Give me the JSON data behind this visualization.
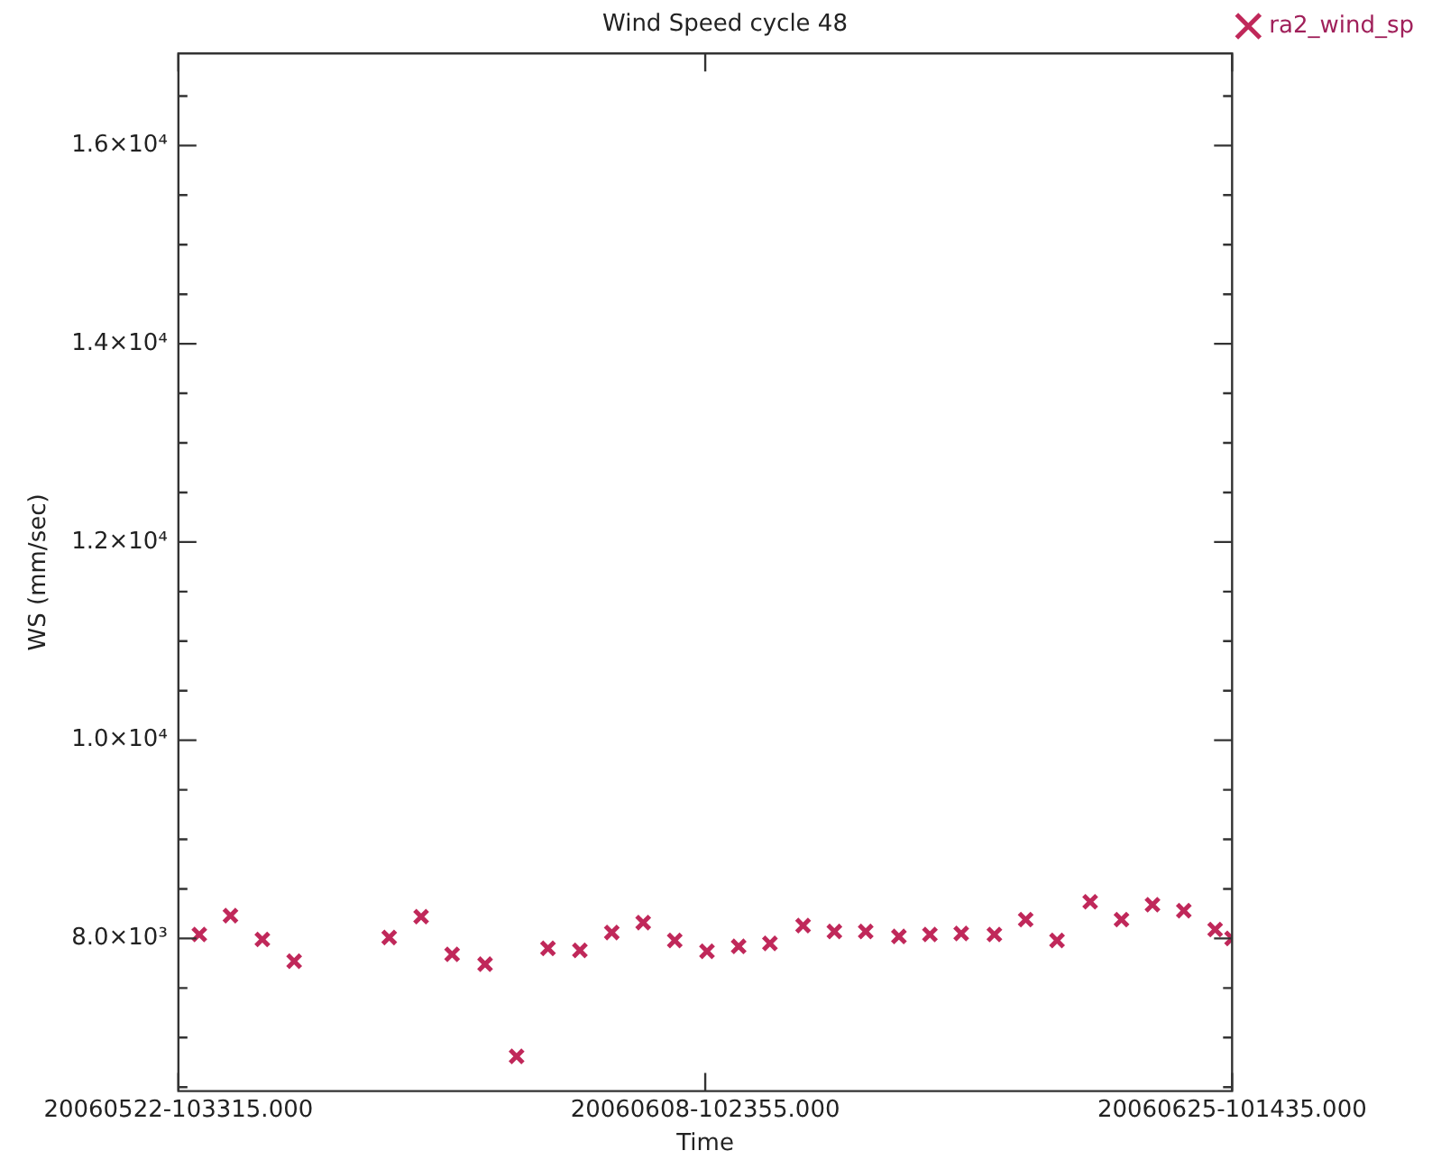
{
  "chart_data": {
    "type": "scatter",
    "title": "Wind Speed cycle 48",
    "xlabel": "Time",
    "ylabel": "WS (mm/sec)",
    "x": [
      "2006-05-23T02:45",
      "2006-05-24T02:51",
      "2006-05-25T03:33",
      "2006-05-26T04:09",
      "2006-05-29T05:45",
      "2006-05-30T06:27",
      "2006-05-31T06:27",
      "2006-06-01T07:57",
      "2006-06-02T08:21",
      "2006-06-03T08:39",
      "2006-06-04T09:21",
      "2006-06-05T10:03",
      "2006-06-06T10:21",
      "2006-06-07T10:47",
      "2006-06-08T11:45",
      "2006-06-09T12:15",
      "2006-06-10T12:28",
      "2006-06-11T14:09",
      "2006-06-12T14:22",
      "2006-06-13T14:37",
      "2006-06-14T16:19",
      "2006-06-15T16:19",
      "2006-06-16T16:33",
      "2006-06-17T18:14",
      "2006-06-18T18:28",
      "2006-06-19T18:43",
      "2006-06-20T20:23",
      "2006-06-21T20:37",
      "2006-06-22T20:37",
      "2006-06-23T20:52",
      "2006-06-24T21:07",
      "2006-06-25T10:14"
    ],
    "series": [
      {
        "name": "ra2_wind_sp",
        "color": "#c0285a",
        "values": [
          8040,
          8230,
          7990,
          7770,
          8010,
          8220,
          7840,
          7740,
          6810,
          7900,
          7880,
          8060,
          8160,
          7980,
          7870,
          7920,
          7950,
          8130,
          8070,
          8070,
          8020,
          8040,
          8050,
          8040,
          8190,
          7980,
          8370,
          8190,
          8340,
          8280,
          8090,
          8000
        ]
      }
    ],
    "xlim": [
      "2006-05-22T10:33:15",
      "2006-06-25T10:14:35"
    ],
    "xticks": [
      {
        "value": "2006-05-22T10:33:15",
        "label": "20060522-103315.000"
      },
      {
        "value": "2006-06-08T10:23:55",
        "label": "20060608-102355.000"
      },
      {
        "value": "2006-06-25T10:14:35",
        "label": "20060625-101435.000"
      }
    ],
    "ylim": [
      6460,
      16930
    ],
    "yticks": [
      {
        "value": 6500,
        "label": null
      },
      {
        "value": 7000,
        "label": null
      },
      {
        "value": 7500,
        "label": null
      },
      {
        "value": 8000,
        "label": "8.0×10³"
      },
      {
        "value": 8500,
        "label": null
      },
      {
        "value": 9000,
        "label": null
      },
      {
        "value": 9500,
        "label": null
      },
      {
        "value": 10000,
        "label": "1.0×10⁴"
      },
      {
        "value": 10500,
        "label": null
      },
      {
        "value": 11000,
        "label": null
      },
      {
        "value": 11500,
        "label": null
      },
      {
        "value": 12000,
        "label": "1.2×10⁴"
      },
      {
        "value": 12500,
        "label": null
      },
      {
        "value": 13000,
        "label": null
      },
      {
        "value": 13500,
        "label": null
      },
      {
        "value": 14000,
        "label": "1.4×10⁴"
      },
      {
        "value": 14500,
        "label": null
      },
      {
        "value": 15000,
        "label": null
      },
      {
        "value": 15500,
        "label": null
      },
      {
        "value": 16000,
        "label": "1.6×10⁴"
      },
      {
        "value": 16500,
        "label": null
      }
    ],
    "grid": false,
    "legend": "top right",
    "marker": "cross"
  }
}
